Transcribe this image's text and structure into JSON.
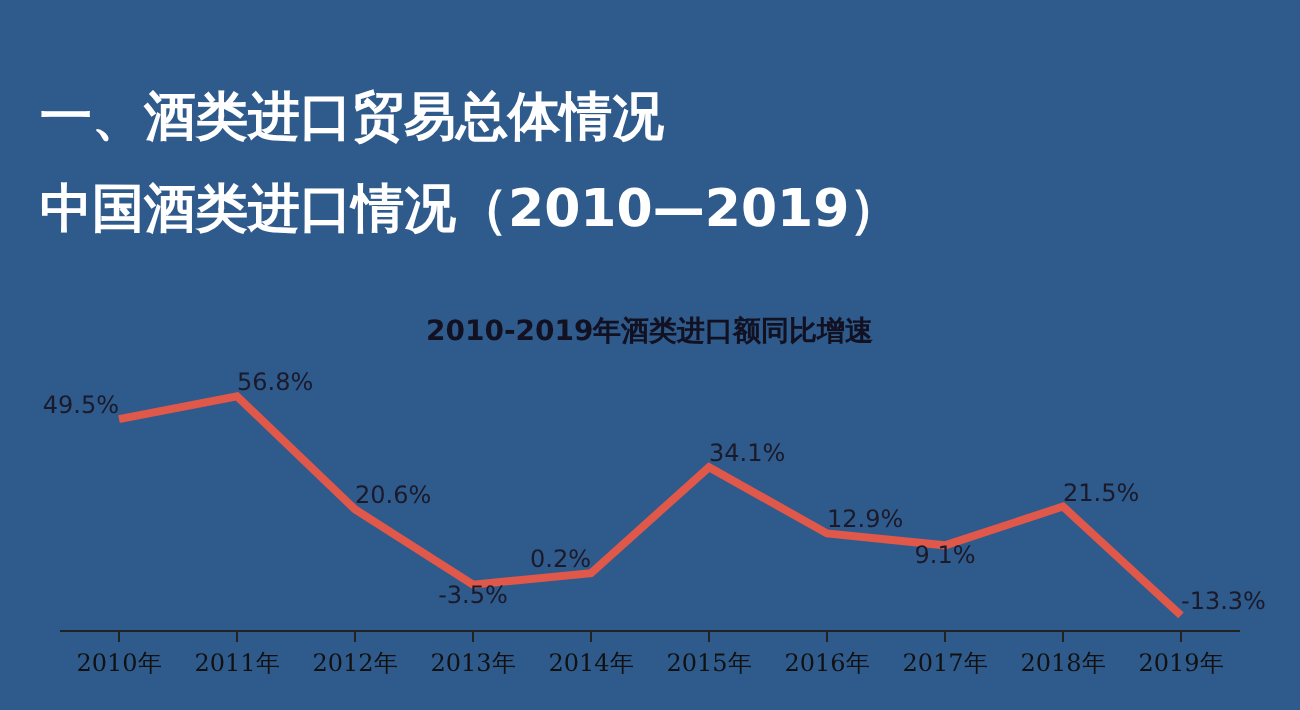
{
  "chart_data": {
    "type": "line",
    "title": "一、酒类进口贸易总体情况",
    "subtitle": "中国酒类进口情况（2010—2019）",
    "annotations": [
      "2010-2019年酒类进口额同比增速"
    ],
    "categories": [
      "2010年",
      "2011年",
      "2012年",
      "2013年",
      "2014年",
      "2015年",
      "2016年",
      "2017年",
      "2018年",
      "2019年"
    ],
    "series": [
      {
        "color": "#e0584a",
        "values": [
          49.5,
          56.8,
          20.6,
          -3.5,
          0.2,
          34.1,
          12.9,
          9.1,
          21.5,
          -13.3
        ],
        "value_labels": [
          "49.5%",
          "56.8%",
          "20.6%",
          "-3.5%",
          "0.2%",
          "34.1%",
          "12.9%",
          "9.1%",
          "21.5%",
          "-13.3%"
        ]
      }
    ],
    "marker": "none",
    "line_style": "solid",
    "grid": false
  }
}
